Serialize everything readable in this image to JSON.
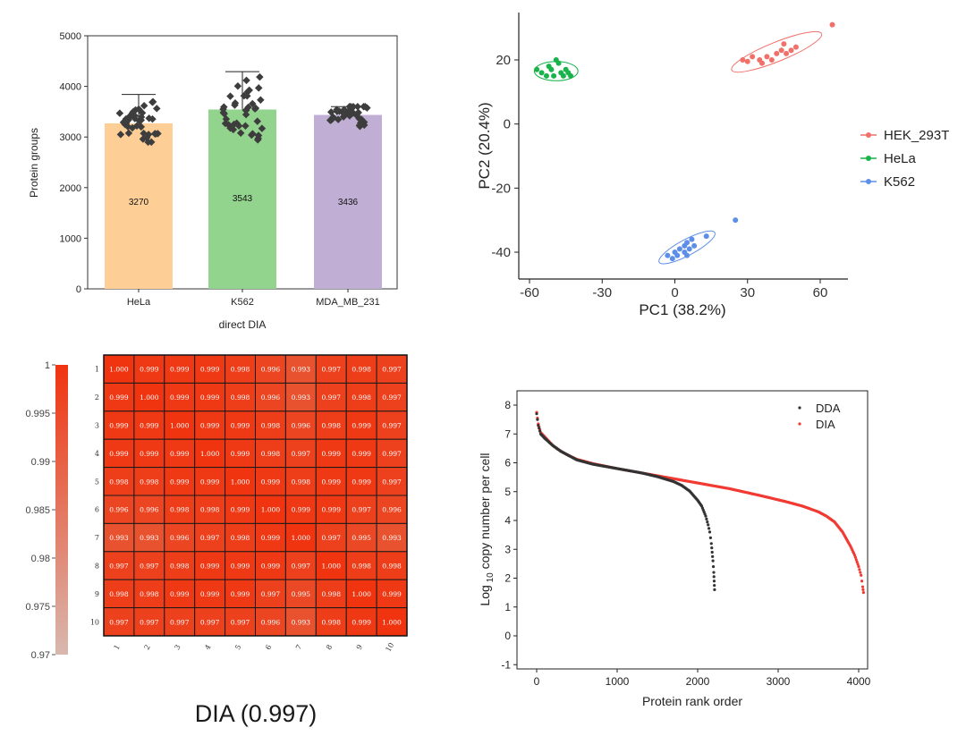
{
  "chart_data": [
    {
      "id": "bar",
      "type": "bar",
      "xlabel": "direct DIA",
      "ylabel": "Protein groups",
      "ylim": [
        0,
        5000
      ],
      "yticks": [
        0,
        1000,
        2000,
        3000,
        4000,
        5000
      ],
      "categories": [
        "HeLa",
        "K562",
        "MDA_MB_231"
      ],
      "values": [
        3270,
        3543,
        3436
      ],
      "value_labels": [
        "3270",
        "3543",
        "3436"
      ],
      "error_upper": [
        3840,
        4290,
        3600
      ],
      "error_lower": [
        2900,
        2770,
        3050
      ],
      "colors": [
        "#fdcf96",
        "#92d38e",
        "#c0aed4"
      ],
      "point_color": "#3d3d3d"
    },
    {
      "id": "pca",
      "type": "scatter",
      "xlabel": "PC1 (38.2%)",
      "ylabel": "PC2 (20.4%)",
      "xlim": [
        -62,
        70
      ],
      "ylim": [
        -48,
        34
      ],
      "xticks": [
        -60,
        -30,
        0,
        30,
        60
      ],
      "yticks": [
        -40,
        -20,
        0,
        20
      ],
      "legend_position": "right",
      "series": [
        {
          "name": "HEK_293T",
          "color": "#f0706a",
          "points": [
            [
              28,
              20
            ],
            [
              30,
              19.5
            ],
            [
              32,
              21
            ],
            [
              35,
              20
            ],
            [
              36,
              19
            ],
            [
              38,
              21
            ],
            [
              40,
              20
            ],
            [
              42,
              22
            ],
            [
              44,
              23
            ],
            [
              45,
              25
            ],
            [
              46,
              22
            ],
            [
              48,
              23
            ],
            [
              50,
              24
            ],
            [
              65,
              31
            ]
          ],
          "ellipse": {
            "cx": 42,
            "cy": 22.5,
            "rx": 20,
            "ry": 3,
            "angle": 22
          }
        },
        {
          "name": "HeLa",
          "color": "#18b34a",
          "points": [
            [
              -57,
              17
            ],
            [
              -55,
              16
            ],
            [
              -53,
              15
            ],
            [
              -52,
              18
            ],
            [
              -51,
              17
            ],
            [
              -50,
              15
            ],
            [
              -49,
              20
            ],
            [
              -48,
              19
            ],
            [
              -47,
              16
            ],
            [
              -46,
              15
            ],
            [
              -45,
              17
            ],
            [
              -44,
              16
            ],
            [
              -43,
              15
            ]
          ],
          "ellipse": {
            "cx": -49,
            "cy": 16.5,
            "rx": 9,
            "ry": 3,
            "angle": 0
          }
        },
        {
          "name": "K562",
          "color": "#5d8fe8",
          "points": [
            [
              -3,
              -41
            ],
            [
              -1,
              -42
            ],
            [
              0,
              -40
            ],
            [
              1,
              -41
            ],
            [
              2,
              -39
            ],
            [
              4,
              -38
            ],
            [
              4,
              -40
            ],
            [
              5,
              -41
            ],
            [
              5,
              -37
            ],
            [
              6,
              -39
            ],
            [
              7,
              -36
            ],
            [
              8,
              -38
            ],
            [
              13,
              -35
            ],
            [
              25,
              -30
            ]
          ],
          "ellipse": {
            "cx": 5,
            "cy": -38.5,
            "rx": 13,
            "ry": 2.5,
            "angle": 28
          }
        }
      ]
    },
    {
      "id": "heatmap",
      "type": "heatmap",
      "title": "DIA (0.997)",
      "labels": [
        "1",
        "2",
        "3",
        "4",
        "5",
        "6",
        "7",
        "8",
        "9",
        "10"
      ],
      "colorbar_ticks": [
        "1",
        "0.995",
        "0.99",
        "0.985",
        "0.98",
        "0.975",
        "0.97"
      ],
      "colorbar_range": [
        0.97,
        1
      ],
      "colors": {
        "high": "#f03410",
        "low": "#d8b8ae"
      },
      "matrix": [
        [
          "1.000",
          "0.999",
          "0.999",
          "0.999",
          "0.998",
          "0.996",
          "0.993",
          "0.997",
          "0.998",
          "0.997"
        ],
        [
          "0.999",
          "1.000",
          "0.999",
          "0.999",
          "0.998",
          "0.996",
          "0.993",
          "0.997",
          "0.998",
          "0.997"
        ],
        [
          "0.999",
          "0.999",
          "1.000",
          "0.999",
          "0.999",
          "0.998",
          "0.996",
          "0.998",
          "0.999",
          "0.997"
        ],
        [
          "0.999",
          "0.999",
          "0.999",
          "1.000",
          "0.999",
          "0.998",
          "0.997",
          "0.999",
          "0.999",
          "0.997"
        ],
        [
          "0.998",
          "0.998",
          "0.999",
          "0.999",
          "1.000",
          "0.999",
          "0.998",
          "0.999",
          "0.999",
          "0.997"
        ],
        [
          "0.996",
          "0.996",
          "0.998",
          "0.998",
          "0.999",
          "1.000",
          "0.999",
          "0.999",
          "0.997",
          "0.996"
        ],
        [
          "0.993",
          "0.993",
          "0.996",
          "0.997",
          "0.998",
          "0.999",
          "1.000",
          "0.997",
          "0.995",
          "0.993"
        ],
        [
          "0.997",
          "0.997",
          "0.998",
          "0.999",
          "0.999",
          "0.999",
          "0.997",
          "1.000",
          "0.998",
          "0.998"
        ],
        [
          "0.998",
          "0.998",
          "0.999",
          "0.999",
          "0.999",
          "0.997",
          "0.995",
          "0.998",
          "1.000",
          "0.999"
        ],
        [
          "0.997",
          "0.997",
          "0.997",
          "0.997",
          "0.997",
          "0.996",
          "0.993",
          "0.998",
          "0.999",
          "1.000"
        ]
      ]
    },
    {
      "id": "rank",
      "type": "scatter",
      "xlabel": "Protein rank order",
      "ylabel_parts": [
        "Log",
        "10",
        " copy number per cell"
      ],
      "xlim": [
        -300,
        4150
      ],
      "ylim": [
        -1,
        8.4
      ],
      "xticks": [
        0,
        1000,
        2000,
        3000,
        4000
      ],
      "yticks": [
        -1,
        0,
        1,
        2,
        3,
        4,
        5,
        6,
        7,
        8
      ],
      "legend_position": "top-right",
      "series": [
        {
          "name": "DDA",
          "color": "#333333",
          "x": [
            0,
            20,
            50,
            100,
            200,
            300,
            400,
            500,
            700,
            900,
            1100,
            1300,
            1500,
            1700,
            1800,
            1900,
            2000,
            2050,
            2100,
            2130,
            2150,
            2170,
            2180,
            2190,
            2200,
            2205,
            2210
          ],
          "y": [
            7.7,
            7.3,
            7.0,
            6.85,
            6.6,
            6.4,
            6.25,
            6.1,
            5.95,
            5.85,
            5.75,
            5.65,
            5.52,
            5.35,
            5.22,
            5.02,
            4.7,
            4.5,
            4.15,
            3.85,
            3.6,
            3.2,
            2.9,
            2.6,
            2.2,
            1.9,
            1.6
          ]
        },
        {
          "name": "DIA",
          "color": "#f03a33",
          "x": [
            0,
            20,
            50,
            100,
            200,
            300,
            400,
            500,
            700,
            1000,
            1300,
            1600,
            2000,
            2400,
            2800,
            3100,
            3300,
            3500,
            3600,
            3700,
            3800,
            3850,
            3900,
            3950,
            4000,
            4030,
            4050,
            4060
          ],
          "y": [
            7.75,
            7.35,
            7.05,
            6.9,
            6.6,
            6.4,
            6.25,
            6.12,
            5.97,
            5.8,
            5.65,
            5.5,
            5.3,
            5.1,
            4.85,
            4.65,
            4.5,
            4.3,
            4.15,
            3.95,
            3.6,
            3.35,
            3.1,
            2.8,
            2.4,
            2.1,
            1.7,
            1.5
          ]
        }
      ]
    }
  ]
}
